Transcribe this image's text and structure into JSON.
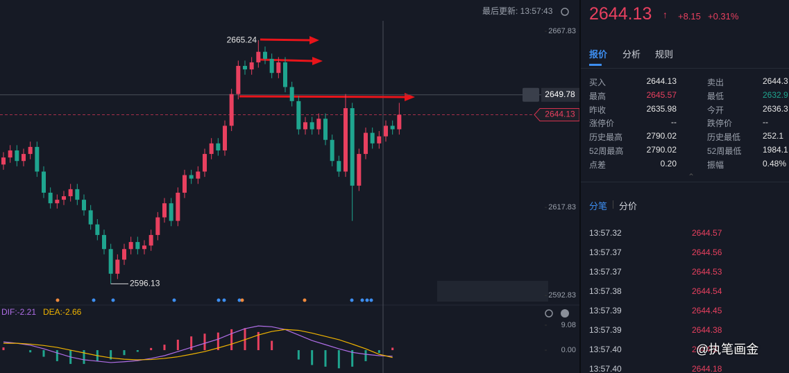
{
  "header": {
    "last_update": "最后更新: 13:57:43"
  },
  "chart_data": {
    "type": "candlestick",
    "up_color": "#e8405f",
    "down_color": "#1fa58f",
    "candles": [
      [
        2630,
        2633.5,
        2628.5,
        2632
      ],
      [
        2632,
        2635.5,
        2630.5,
        2634
      ],
      [
        2634,
        2635.5,
        2629.5,
        2631
      ],
      [
        2631,
        2634.5,
        2629.5,
        2633
      ],
      [
        2633,
        2636.5,
        2631.5,
        2635
      ],
      [
        2635,
        2636.5,
        2626.5,
        2628
      ],
      [
        2628,
        2629.5,
        2620.5,
        2622
      ],
      [
        2622,
        2623.5,
        2617.5,
        2619
      ],
      [
        2619,
        2621.5,
        2617.5,
        2620
      ],
      [
        2620,
        2622.5,
        2618.5,
        2621
      ],
      [
        2621,
        2624.5,
        2619.5,
        2623
      ],
      [
        2623,
        2624.5,
        2618.5,
        2620
      ],
      [
        2620,
        2621.5,
        2615.5,
        2617
      ],
      [
        2617,
        2618.5,
        2611.5,
        2613
      ],
      [
        2613,
        2614.5,
        2608.5,
        2610
      ],
      [
        2610,
        2611.5,
        2604.5,
        2606
      ],
      [
        2606,
        2607.5,
        2596.13,
        2599
      ],
      [
        2599,
        2604.5,
        2597.5,
        2603
      ],
      [
        2603,
        2607.5,
        2601.5,
        2606
      ],
      [
        2606,
        2609.5,
        2604.5,
        2608
      ],
      [
        2608,
        2609.5,
        2604.5,
        2606
      ],
      [
        2606,
        2608.5,
        2604.5,
        2607
      ],
      [
        2607,
        2611.5,
        2605.5,
        2610
      ],
      [
        2610,
        2616.5,
        2608.5,
        2615
      ],
      [
        2615,
        2620.5,
        2613.5,
        2619
      ],
      [
        2619,
        2620.5,
        2612.5,
        2614
      ],
      [
        2614,
        2623.5,
        2612.5,
        2622
      ],
      [
        2622,
        2628.5,
        2620.5,
        2627
      ],
      [
        2627,
        2628.5,
        2624.5,
        2626
      ],
      [
        2626,
        2629.5,
        2624.5,
        2628
      ],
      [
        2628,
        2634.5,
        2626.5,
        2633
      ],
      [
        2633,
        2637.5,
        2631.5,
        2636
      ],
      [
        2636,
        2637.5,
        2632.5,
        2634
      ],
      [
        2634,
        2642.5,
        2632.5,
        2641
      ],
      [
        2641,
        2651.5,
        2639.5,
        2650
      ],
      [
        2650,
        2659.5,
        2648.5,
        2658
      ],
      [
        2658,
        2659.5,
        2655.5,
        2657
      ],
      [
        2657,
        2660.5,
        2655.5,
        2659
      ],
      [
        2659,
        2665.24,
        2657.5,
        2662
      ],
      [
        2662,
        2663.5,
        2658.5,
        2660
      ],
      [
        2660,
        2661.5,
        2654.5,
        2656
      ],
      [
        2656,
        2660.5,
        2654.5,
        2659
      ],
      [
        2659,
        2660.5,
        2650.5,
        2652
      ],
      [
        2652,
        2653.5,
        2646.5,
        2648
      ],
      [
        2648,
        2649.5,
        2638.5,
        2640
      ],
      [
        2640,
        2643.5,
        2638.5,
        2642
      ],
      [
        2642,
        2643.5,
        2638.5,
        2640
      ],
      [
        2640,
        2644.5,
        2638.5,
        2643
      ],
      [
        2643,
        2644.5,
        2635.5,
        2637
      ],
      [
        2637,
        2638.5,
        2629.5,
        2631
      ],
      [
        2631,
        2632.5,
        2626.5,
        2628
      ],
      [
        2628,
        2650,
        2626.5,
        2646
      ],
      [
        2646,
        2647.5,
        2614,
        2624
      ],
      [
        2624,
        2634.5,
        2622.5,
        2633
      ],
      [
        2633,
        2640.5,
        2631.5,
        2639
      ],
      [
        2639,
        2640.5,
        2634.5,
        2636
      ],
      [
        2636,
        2639.5,
        2634.5,
        2638
      ],
      [
        2638,
        2642.5,
        2636.5,
        2641
      ],
      [
        2641,
        2642.5,
        2638.5,
        2640
      ],
      [
        2640,
        2647.5,
        2638.5,
        2644.13
      ]
    ],
    "ylim": [
      2590.5,
      2670.8
    ],
    "yticks": [
      2667.83,
      2617.83,
      2592.83
    ],
    "high_annotation": 2665.24,
    "low_annotation": 2596.13,
    "alert_price": 2649.78,
    "last_price": 2644.13,
    "macd": {
      "dif_label": "DIF:-2.21",
      "dea_label": "DEA:-2.66",
      "dif_color": "#b06ee8",
      "dea_color": "#f0b400",
      "dif": [
        3,
        2.5,
        1.8,
        0.5,
        -1,
        -2.5,
        -3.5,
        -4,
        -4.5,
        -4.2,
        -3.8,
        -3,
        -2,
        -0.5,
        1,
        2.5,
        4,
        6,
        7.8,
        8.8,
        8.5,
        7.5,
        5.5,
        3.5,
        2,
        0.5,
        -0.8,
        -1.5,
        -2,
        -2.21
      ],
      "dea": [
        2.5,
        2.5,
        2.2,
        1.7,
        1,
        0,
        -1,
        -2,
        -2.8,
        -3.3,
        -3.5,
        -3.4,
        -3,
        -2.4,
        -1.5,
        -0.5,
        0.8,
        2.2,
        3.8,
        5.5,
        6.8,
        7.5,
        7.2,
        6.2,
        5,
        3.8,
        2.2,
        0.5,
        -1.5,
        -2.66
      ],
      "hist": [
        1,
        0,
        -0.8,
        -2.4,
        -4,
        -5,
        -5,
        -4,
        -3.4,
        -1.8,
        -0.6,
        0.8,
        2,
        3.8,
        5,
        6,
        6.4,
        7.6,
        8,
        6.6,
        3.4,
        0,
        -3.4,
        -5.4,
        -6,
        -6.6,
        -6,
        -4,
        -1,
        0.9
      ],
      "ylim": [
        -8.3,
        11.35
      ],
      "yticks": [
        9.08,
        {
          "value": 0,
          "label": "0.00"
        }
      ]
    }
  },
  "quote": {
    "price": "2644.13",
    "change": "+8.15",
    "change_pct": "+0.31%",
    "tabs": [
      "报价",
      "分析",
      "规则"
    ],
    "rows": [
      [
        "买入",
        "2644.13",
        "卖出",
        "2644.3"
      ],
      [
        "最高",
        "2645.57",
        "最低",
        "2632.9"
      ],
      [
        "昨收",
        "2635.98",
        "今开",
        "2636.3"
      ],
      [
        "涨停价",
        "--",
        "跌停价",
        "--"
      ],
      [
        "历史最高",
        "2790.02",
        "历史最低",
        "252.1"
      ],
      [
        "52周最高",
        "2790.02",
        "52周最低",
        "1984.1"
      ],
      [
        "点差",
        "0.20",
        "振幅",
        "0.48%"
      ]
    ],
    "trade_tabs": [
      "分笔",
      "分价"
    ],
    "trades": [
      [
        "13:57.32",
        "2644.57"
      ],
      [
        "13:57.37",
        "2644.56"
      ],
      [
        "13:57.37",
        "2644.53"
      ],
      [
        "13:57.38",
        "2644.54"
      ],
      [
        "13:57.39",
        "2644.45"
      ],
      [
        "13:57.39",
        "2644.38"
      ],
      [
        "13:57.40",
        "2644.2"
      ],
      [
        "13:57.40",
        "2644.18"
      ]
    ]
  },
  "watermark": "@执笔画金"
}
